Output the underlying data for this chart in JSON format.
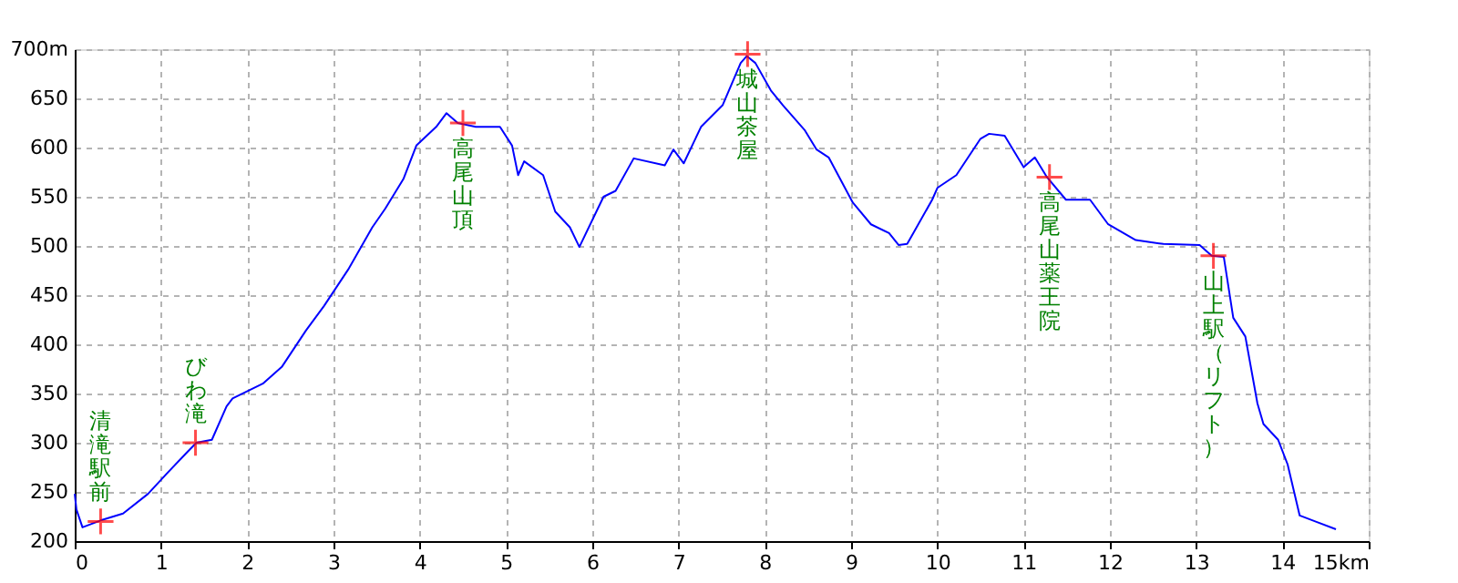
{
  "chart_data": {
    "type": "line",
    "xlim": [
      0,
      15
    ],
    "xticks": [
      0,
      1,
      2,
      3,
      4,
      5,
      6,
      7,
      8,
      9,
      10,
      11,
      12,
      13,
      14,
      {
        "value": 15,
        "label": "15km"
      }
    ],
    "ylim": [
      200,
      700
    ],
    "yticks": [
      200,
      250,
      300,
      350,
      400,
      450,
      500,
      550,
      600,
      650,
      {
        "value": 700,
        "label": "700m"
      }
    ],
    "grid": true,
    "series": [
      {
        "color": "#0000ff",
        "marker": "none",
        "line_style": "solid",
        "x": [
          0,
          0.02,
          0.09,
          0.3,
          0.56,
          0.85,
          1.06,
          1.31,
          1.41,
          1.59,
          1.76,
          1.83,
          1.97,
          2.18,
          2.4,
          2.68,
          2.89,
          3.17,
          3.45,
          3.6,
          3.81,
          3.96,
          4.19,
          4.31,
          4.44,
          4.65,
          4.93,
          5.07,
          5.14,
          5.21,
          5.43,
          5.57,
          5.74,
          5.85,
          6.13,
          6.27,
          6.48,
          6.84,
          6.94,
          7.06,
          7.26,
          7.51,
          7.72,
          7.79,
          7.89,
          8.07,
          8.21,
          8.46,
          8.6,
          8.74,
          9.02,
          9.23,
          9.44,
          9.55,
          9.65,
          9.94,
          10.0,
          10.22,
          10.5,
          10.6,
          10.78,
          11.0,
          11.13,
          11.27,
          11.49,
          11.77,
          11.98,
          12.3,
          12.62,
          13.04,
          13.18,
          13.32,
          13.43,
          13.57,
          13.71,
          13.78,
          13.95,
          14.06,
          14.2,
          14.38,
          14.62
        ],
        "values": [
          248,
          232,
          214,
          221,
          228,
          248,
          268,
          291,
          300,
          303,
          337,
          345,
          351,
          360,
          377,
          414,
          439,
          476,
          519,
          538,
          568,
          602,
          621,
          635,
          625,
          621,
          621,
          602,
          572,
          586,
          572,
          535,
          519,
          499,
          550,
          556,
          589,
          582,
          598,
          584,
          621,
          643,
          686,
          693,
          686,
          658,
          643,
          618,
          598,
          590,
          544,
          522,
          513,
          501,
          502,
          547,
          559,
          572,
          609,
          614,
          612,
          580,
          590,
          570,
          547,
          547,
          522,
          506,
          502,
          501,
          490,
          489,
          427,
          408,
          340,
          319,
          303,
          278,
          226,
          220,
          212
        ]
      },
      {
        "type": "scatter",
        "color": "#ff0000",
        "marker": "cross",
        "x": [
          0.3,
          1.4,
          4.5,
          7.8,
          11.3,
          13.2
        ],
        "values": [
          220,
          300,
          625,
          695,
          570,
          490
        ]
      }
    ],
    "annotations": [
      {
        "text": "清滝駅前",
        "x": 0.3,
        "y": 220
      },
      {
        "text": "びわ滝",
        "x": 1.4,
        "y": 300
      },
      {
        "text": "高尾山頂",
        "x": 4.5,
        "y": 625
      },
      {
        "text": "城山茶屋",
        "x": 7.8,
        "y": 695
      },
      {
        "text": "高尾山薬王院",
        "x": 11.3,
        "y": 570
      },
      {
        "text": "山上駅（リフト）",
        "x": 13.2,
        "y": 490
      }
    ]
  }
}
